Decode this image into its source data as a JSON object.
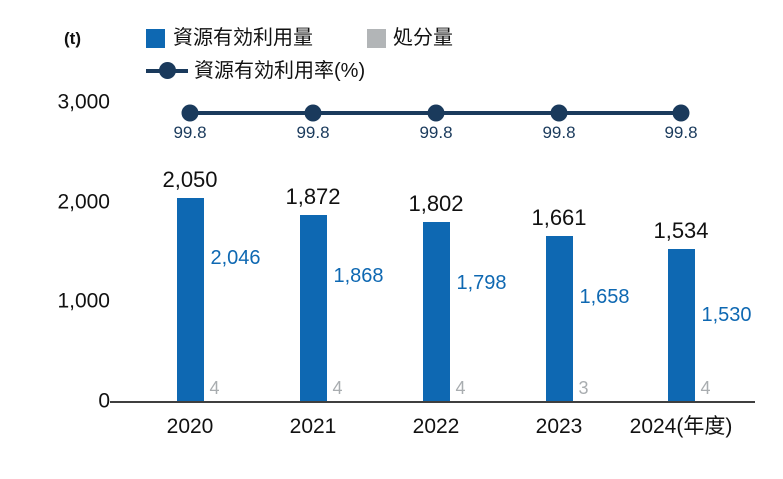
{
  "unit_label": "(t)",
  "legend": {
    "items": [
      {
        "label": "資源有効利用量",
        "marker": "square",
        "color": "#0e68b2"
      },
      {
        "label": "処分量",
        "marker": "square",
        "color": "#b2b5b7"
      },
      {
        "label": "資源有効利用率(%)",
        "marker": "line-dot",
        "color": "#1a3a5c"
      }
    ]
  },
  "y_axis": {
    "unit": "(t)",
    "ticks": [
      {
        "value": 3000,
        "label": "3,000"
      },
      {
        "value": 2000,
        "label": "2,000"
      },
      {
        "value": 1000,
        "label": "1,000"
      },
      {
        "value": 0,
        "label": "0"
      }
    ]
  },
  "chart_data": {
    "type": "bar",
    "categories": [
      "2020",
      "2021",
      "2022",
      "2023",
      "2024"
    ],
    "x_axis_note": "(年度)",
    "series": [
      {
        "name": "資源有効利用量",
        "type": "bar",
        "color": "#0e68b2",
        "values": [
          2046,
          1868,
          1798,
          1658,
          1530
        ],
        "labels": [
          "2,046",
          "1,868",
          "1,798",
          "1,658",
          "1,530"
        ]
      },
      {
        "name": "処分量",
        "type": "bar",
        "color": "#b2b5b7",
        "values": [
          4,
          4,
          4,
          3,
          4
        ],
        "labels": [
          "4",
          "4",
          "4",
          "3",
          "4"
        ]
      },
      {
        "name": "資源有効利用率(%)",
        "type": "line",
        "color": "#1a3a5c",
        "values": [
          99.8,
          99.8,
          99.8,
          99.8,
          99.8
        ],
        "labels": [
          "99.8",
          "99.8",
          "99.8",
          "99.8",
          "99.8"
        ]
      }
    ],
    "totals": {
      "values": [
        2050,
        1872,
        1802,
        1661,
        1534
      ],
      "labels": [
        "2,050",
        "1,872",
        "1,802",
        "1,661",
        "1,534"
      ]
    },
    "ylim": [
      0,
      3000
    ],
    "grid": false,
    "legend_position": "top"
  }
}
